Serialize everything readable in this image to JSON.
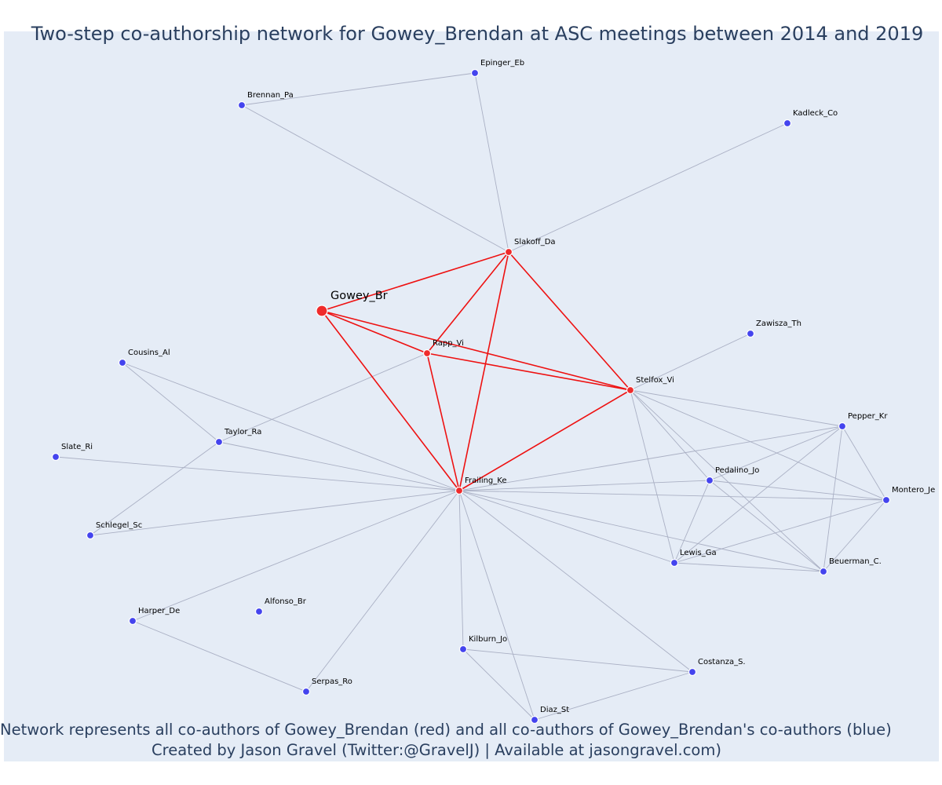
{
  "title": "Two-step co-authorship network for Gowey_Brendan at ASC meetings between 2014 and 2019",
  "footer": {
    "line1": "Network represents all co-authors of Gowey_Brendan (red) and all co-authors of Gowey_Brendan's co-authors (blue)",
    "line2": "Created by Jason Gravel (Twitter:@GravelJ) | Available at jasongravel.com)"
  },
  "colors": {
    "background": "#e5ecf6",
    "coauthor_node": "#ef2b2b",
    "second_step_node": "#4444ee",
    "coauthor_edge": "#ee1111",
    "second_step_edge": "#aab0c4",
    "text": "#2a3f5f"
  },
  "network": {
    "nodes": [
      {
        "id": "Gowey_Br",
        "group": "focal"
      },
      {
        "id": "Slakoff_Da",
        "group": "coauthor"
      },
      {
        "id": "Rapp_Vi",
        "group": "coauthor"
      },
      {
        "id": "Stelfox_Vi",
        "group": "coauthor"
      },
      {
        "id": "Frailing_Ke",
        "group": "coauthor"
      },
      {
        "id": "Epinger_Eb",
        "group": "second_step"
      },
      {
        "id": "Brennan_Pa",
        "group": "second_step"
      },
      {
        "id": "Kadleck_Co",
        "group": "second_step"
      },
      {
        "id": "Zawisza_Th",
        "group": "second_step"
      },
      {
        "id": "Cousins_Al",
        "group": "second_step"
      },
      {
        "id": "Taylor_Ra",
        "group": "second_step"
      },
      {
        "id": "Slate_Ri",
        "group": "second_step"
      },
      {
        "id": "Schlegel_Sc",
        "group": "second_step"
      },
      {
        "id": "Pepper_Kr",
        "group": "second_step"
      },
      {
        "id": "Pedalino_Jo",
        "group": "second_step"
      },
      {
        "id": "Montero_Je",
        "group": "second_step"
      },
      {
        "id": "Lewis_Ga",
        "group": "second_step"
      },
      {
        "id": "Beuerman_C.",
        "group": "second_step"
      },
      {
        "id": "Harper_De",
        "group": "second_step"
      },
      {
        "id": "Alfonso_Br",
        "group": "second_step"
      },
      {
        "id": "Kilburn_Jo",
        "group": "second_step"
      },
      {
        "id": "Costanza_S.",
        "group": "second_step"
      },
      {
        "id": "Serpas_Ro",
        "group": "second_step"
      },
      {
        "id": "Diaz_St",
        "group": "second_step"
      }
    ],
    "edges": [
      [
        "Gowey_Br",
        "Slakoff_Da"
      ],
      [
        "Gowey_Br",
        "Rapp_Vi"
      ],
      [
        "Gowey_Br",
        "Stelfox_Vi"
      ],
      [
        "Gowey_Br",
        "Frailing_Ke"
      ],
      [
        "Slakoff_Da",
        "Rapp_Vi"
      ],
      [
        "Slakoff_Da",
        "Stelfox_Vi"
      ],
      [
        "Slakoff_Da",
        "Frailing_Ke"
      ],
      [
        "Rapp_Vi",
        "Stelfox_Vi"
      ],
      [
        "Rapp_Vi",
        "Frailing_Ke"
      ],
      [
        "Stelfox_Vi",
        "Frailing_Ke"
      ],
      [
        "Slakoff_Da",
        "Epinger_Eb"
      ],
      [
        "Slakoff_Da",
        "Brennan_Pa"
      ],
      [
        "Slakoff_Da",
        "Kadleck_Co"
      ],
      [
        "Brennan_Pa",
        "Epinger_Eb"
      ],
      [
        "Rapp_Vi",
        "Taylor_Ra"
      ],
      [
        "Stelfox_Vi",
        "Zawisza_Th"
      ],
      [
        "Stelfox_Vi",
        "Pepper_Kr"
      ],
      [
        "Stelfox_Vi",
        "Pedalino_Jo"
      ],
      [
        "Stelfox_Vi",
        "Montero_Je"
      ],
      [
        "Stelfox_Vi",
        "Lewis_Ga"
      ],
      [
        "Stelfox_Vi",
        "Beuerman_C."
      ],
      [
        "Frailing_Ke",
        "Cousins_Al"
      ],
      [
        "Frailing_Ke",
        "Taylor_Ra"
      ],
      [
        "Frailing_Ke",
        "Slate_Ri"
      ],
      [
        "Frailing_Ke",
        "Schlegel_Sc"
      ],
      [
        "Frailing_Ke",
        "Pepper_Kr"
      ],
      [
        "Frailing_Ke",
        "Pedalino_Jo"
      ],
      [
        "Frailing_Ke",
        "Montero_Je"
      ],
      [
        "Frailing_Ke",
        "Lewis_Ga"
      ],
      [
        "Frailing_Ke",
        "Beuerman_C."
      ],
      [
        "Frailing_Ke",
        "Harper_De"
      ],
      [
        "Frailing_Ke",
        "Kilburn_Jo"
      ],
      [
        "Frailing_Ke",
        "Costanza_S."
      ],
      [
        "Frailing_Ke",
        "Serpas_Ro"
      ],
      [
        "Frailing_Ke",
        "Diaz_St"
      ],
      [
        "Cousins_Al",
        "Taylor_Ra"
      ],
      [
        "Taylor_Ra",
        "Schlegel_Sc"
      ],
      [
        "Harper_De",
        "Serpas_Ro"
      ],
      [
        "Kilburn_Jo",
        "Costanza_S."
      ],
      [
        "Kilburn_Jo",
        "Diaz_St"
      ],
      [
        "Costanza_S.",
        "Diaz_St"
      ],
      [
        "Pepper_Kr",
        "Pedalino_Jo"
      ],
      [
        "Pepper_Kr",
        "Montero_Je"
      ],
      [
        "Pepper_Kr",
        "Lewis_Ga"
      ],
      [
        "Pepper_Kr",
        "Beuerman_C."
      ],
      [
        "Pedalino_Jo",
        "Montero_Je"
      ],
      [
        "Pedalino_Jo",
        "Lewis_Ga"
      ],
      [
        "Pedalino_Jo",
        "Beuerman_C."
      ],
      [
        "Montero_Je",
        "Lewis_Ga"
      ],
      [
        "Montero_Je",
        "Beuerman_C."
      ],
      [
        "Lewis_Ga",
        "Beuerman_C."
      ]
    ]
  }
}
